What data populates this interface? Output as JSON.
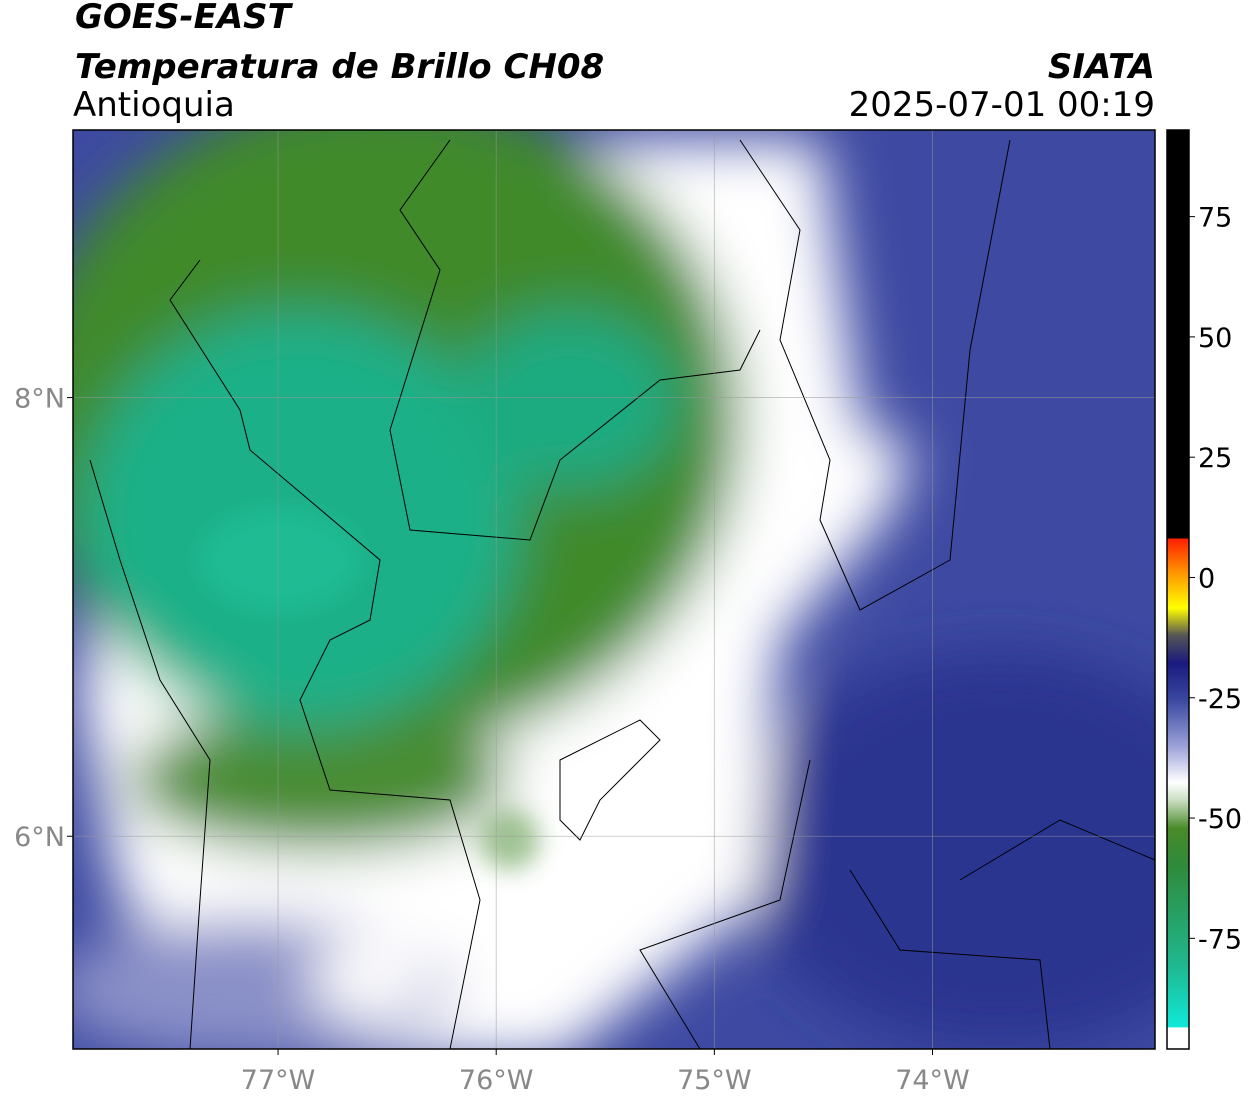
{
  "title": "GOES-EAST",
  "subtitle": "Temperatura de Brillo CH08",
  "region": "Antioquia",
  "source": "SIATA",
  "timestamp": "2025-07-01 00:19",
  "map": {
    "xlim": [
      -77.94,
      -72.98
    ],
    "ylim": [
      5.03,
      9.22
    ],
    "xticks": [
      {
        "value": -77,
        "label": "77°W"
      },
      {
        "value": -76,
        "label": "76°W"
      },
      {
        "value": -75,
        "label": "75°W"
      },
      {
        "value": -74,
        "label": "74°W"
      }
    ],
    "yticks": [
      {
        "value": 8,
        "label": "8°N"
      },
      {
        "value": 6,
        "label": "6°N"
      }
    ],
    "grid": true
  },
  "colorbar": {
    "lim": [
      -98,
      93
    ],
    "ticks": [
      75,
      50,
      25,
      0,
      -25,
      -50,
      -75
    ]
  }
}
